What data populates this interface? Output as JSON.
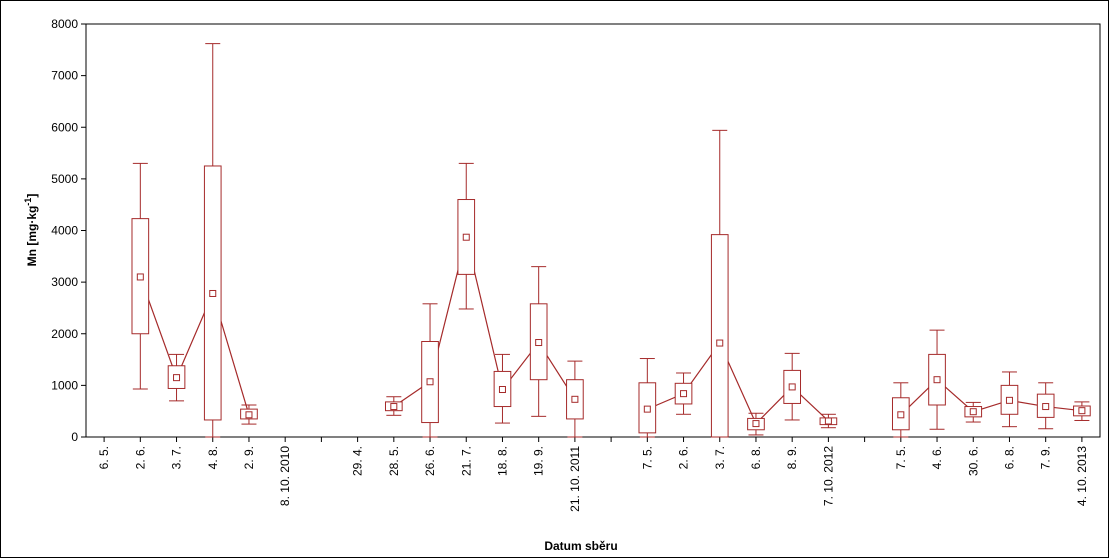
{
  "colors": {
    "series": "#a52a2a",
    "axis": "#000000",
    "background": "#ffffff"
  },
  "chart_data": {
    "type": "box",
    "xlabel": "Datum sběru",
    "ylabel_main": "Mn [mg·kg",
    "ylabel_sup": "-1",
    "ylabel_end": "]",
    "ylim": [
      0,
      8000
    ],
    "yticks": [
      0,
      1000,
      2000,
      3000,
      4000,
      5000,
      6000,
      7000,
      8000
    ],
    "categories": [
      "6. 5.",
      "2. 6.",
      "3. 7.",
      "4. 8.",
      "2. 9.",
      "8. 10. 2010",
      "",
      "29. 4.",
      "28. 5.",
      "26. 6.",
      "21. 7.",
      "18. 8.",
      "19. 9.",
      "21. 10. 2011",
      "",
      "7. 5.",
      "2. 6.",
      "3. 7.",
      "6. 8.",
      "8. 9.",
      "7. 10. 2012",
      "",
      "7. 5.",
      "4. 6.",
      "30. 6.",
      "6. 8.",
      "7. 9.",
      "4. 10. 2013"
    ],
    "groups": [
      {
        "start": 0,
        "end": 5
      },
      {
        "start": 7,
        "end": 13
      },
      {
        "start": 15,
        "end": 20
      },
      {
        "start": 22,
        "end": 27
      }
    ],
    "boxes": [
      null,
      {
        "median": 3100,
        "q1": 2000,
        "q3": 4230,
        "min": 930,
        "max": 5300
      },
      {
        "median": 1150,
        "q1": 940,
        "q3": 1380,
        "min": 700,
        "max": 1600
      },
      {
        "median": 2780,
        "q1": 330,
        "q3": 5250,
        "min": 0,
        "max": 7620
      },
      {
        "median": 430,
        "q1": 350,
        "q3": 540,
        "min": 250,
        "max": 620
      },
      null,
      null,
      null,
      {
        "median": 590,
        "q1": 510,
        "q3": 680,
        "min": 420,
        "max": 780
      },
      {
        "median": 1070,
        "q1": 280,
        "q3": 1850,
        "min": 0,
        "max": 2580
      },
      {
        "median": 3870,
        "q1": 3150,
        "q3": 4600,
        "min": 2480,
        "max": 5300
      },
      {
        "median": 920,
        "q1": 590,
        "q3": 1270,
        "min": 270,
        "max": 1600
      },
      {
        "median": 1830,
        "q1": 1110,
        "q3": 2580,
        "min": 400,
        "max": 3300
      },
      {
        "median": 730,
        "q1": 350,
        "q3": 1110,
        "min": 0,
        "max": 1470
      },
      null,
      {
        "median": 540,
        "q1": 80,
        "q3": 1050,
        "min": 0,
        "max": 1520
      },
      {
        "median": 840,
        "q1": 640,
        "q3": 1040,
        "min": 440,
        "max": 1240
      },
      {
        "median": 1820,
        "q1": 0,
        "q3": 3920,
        "min": 0,
        "max": 5940
      },
      {
        "median": 260,
        "q1": 140,
        "q3": 360,
        "min": 40,
        "max": 460
      },
      {
        "median": 970,
        "q1": 650,
        "q3": 1290,
        "min": 330,
        "max": 1620
      },
      {
        "median": 310,
        "q1": 240,
        "q3": 370,
        "min": 180,
        "max": 440
      },
      null,
      {
        "median": 430,
        "q1": 140,
        "q3": 760,
        "min": 0,
        "max": 1050
      },
      {
        "median": 1110,
        "q1": 620,
        "q3": 1600,
        "min": 150,
        "max": 2070
      },
      {
        "median": 490,
        "q1": 390,
        "q3": 590,
        "min": 290,
        "max": 670
      },
      {
        "median": 710,
        "q1": 440,
        "q3": 1000,
        "min": 200,
        "max": 1260
      },
      {
        "median": 590,
        "q1": 380,
        "q3": 830,
        "min": 160,
        "max": 1050
      },
      {
        "median": 510,
        "q1": 410,
        "q3": 600,
        "min": 320,
        "max": 680
      }
    ],
    "grid": false
  }
}
